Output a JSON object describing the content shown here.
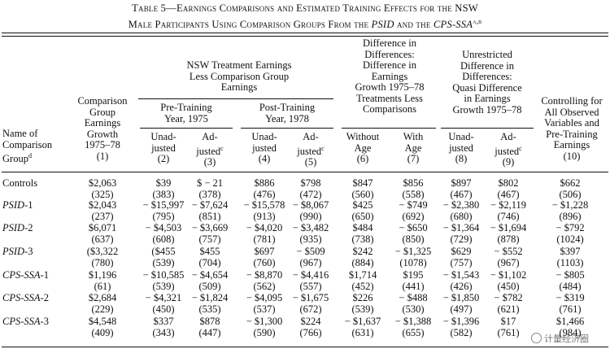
{
  "caption": {
    "line1": "Table 5—Earnings Comparisons and Estimated Training Effects for the NSW",
    "line2_prefix": "Male Participants Using Comparison Groups From the ",
    "line2_psid": "PSID",
    "line2_mid": " and the ",
    "line2_cps": "CPS-SSA",
    "line2_sup": "a,b"
  },
  "headers": {
    "name_col": [
      "Name of",
      "Comparison",
      "Group"
    ],
    "name_sup": "d",
    "comp_growth": [
      "Comparison",
      "Group",
      "Earnings",
      "Growth",
      "1975–78",
      "(1)"
    ],
    "nsw_group": [
      "NSW Treatment Earnings",
      "Less Comparison Group",
      "Earnings"
    ],
    "pre_training": [
      "Pre-Training",
      "Year, 1975"
    ],
    "post_training": [
      "Post-Training",
      "Year, 1978"
    ],
    "diff_in_diff": [
      "Difference in",
      "Differences:",
      "Difference in",
      "Earnings",
      "Growth 1975–78",
      "Treatments Less",
      "Comparisons"
    ],
    "unrestricted": [
      "Unrestricted",
      "Difference in",
      "Differences:",
      "Quasi Difference",
      "in Earnings",
      "Growth 1975–78"
    ],
    "controlling": [
      "Controlling for",
      "All Observed",
      "Variables and",
      "Pre-Training",
      "Earnings",
      "(10)"
    ],
    "unadjusted": [
      "Unad-",
      "justed"
    ],
    "adjusted": [
      "Ad-",
      "justed"
    ],
    "adjusted_sup": "c",
    "without_age": [
      "Without",
      "Age"
    ],
    "with_age": [
      "With",
      "Age"
    ],
    "colnums": [
      "(2)",
      "(3)",
      "(4)",
      "(5)",
      "(6)",
      "(7)",
      "(8)",
      "(9)"
    ]
  },
  "rows": [
    {
      "name": "Controls",
      "italic": "",
      "suffix": "",
      "values": [
        "$2,063",
        "$39",
        "$ − 21",
        "$886",
        "$798",
        "$847",
        "$856",
        "$897",
        "$802",
        "$662"
      ],
      "se": [
        "(325)",
        "(383)",
        "(378)",
        "(476)",
        "(472)",
        "(560)",
        "(558)",
        "(467)",
        "(467)",
        "(506)"
      ]
    },
    {
      "name": "",
      "italic": "PSID",
      "suffix": "-1",
      "values": [
        "$2,043",
        "− $15,997",
        "− $7,624",
        "− $15,578",
        "− $8,067",
        "$425",
        "− $749",
        "− $2,380",
        "− $2,119",
        "− $1,228"
      ],
      "se": [
        "(237)",
        "(795)",
        "(851)",
        "(913)",
        "(990)",
        "(650)",
        "(692)",
        "(680)",
        "(746)",
        "(896)"
      ]
    },
    {
      "name": "",
      "italic": "PSID",
      "suffix": "-2",
      "values": [
        "$6,071",
        "− $4,503",
        "− $3,669",
        "− $4,020",
        "− $3,482",
        "$484",
        "− $650",
        "− $1,364",
        "− $1,694",
        "− $792"
      ],
      "se": [
        "(637)",
        "(608)",
        "(757)",
        "(781)",
        "(935)",
        "(738)",
        "(850)",
        "(729)",
        "(878)",
        "(1024)"
      ]
    },
    {
      "name": "",
      "italic": "PSID",
      "suffix": "-3",
      "values": [
        "($3,322",
        "($455",
        "$455",
        "$697",
        "− $509",
        "$242",
        "− $1,325",
        "$629",
        "− $552",
        "$397"
      ],
      "se": [
        "(780)",
        "(539)",
        "(704)",
        "(760)",
        "(967)",
        "(884)",
        "(1078)",
        "(757)",
        "(967)",
        "(1103)"
      ]
    },
    {
      "name": "",
      "italic": "CPS-SSA",
      "suffix": "-1",
      "values": [
        "$1,196",
        "− $10,585",
        "− $4,654",
        "− $8,870",
        "− $4,416",
        "$1,714",
        "$195",
        "− $1,543",
        "− $1,102",
        "− $805"
      ],
      "se": [
        "(61)",
        "(539)",
        "(509)",
        "(562)",
        "(557)",
        "(452)",
        "(441)",
        "(426)",
        "(450)",
        "(484)"
      ]
    },
    {
      "name": "",
      "italic": "CPS-SSA",
      "suffix": "-2",
      "values": [
        "$2,684",
        "− $4,321",
        "− $1,824",
        "− $4,095",
        "− $1,675",
        "$226",
        "− $488",
        "− $1,850",
        "− $782",
        "− $319"
      ],
      "se": [
        "(229)",
        "(450)",
        "(535)",
        "(537)",
        "(672)",
        "(539)",
        "(530)",
        "(497)",
        "(621)",
        "(761)"
      ]
    },
    {
      "name": "",
      "italic": "CPS-SSA",
      "suffix": "-3",
      "values": [
        "$4,548",
        "$337",
        "$878",
        "− $1,300",
        "$224",
        "− $1,637",
        "− $1,388",
        "− $1,396",
        "$17",
        "$1,466"
      ],
      "se": [
        "(409)",
        "(343)",
        "(447)",
        "(590)",
        "(766)",
        "(631)",
        "(655)",
        "(582)",
        "(761)",
        "(984)"
      ]
    }
  ],
  "watermark": "计量经济圈"
}
